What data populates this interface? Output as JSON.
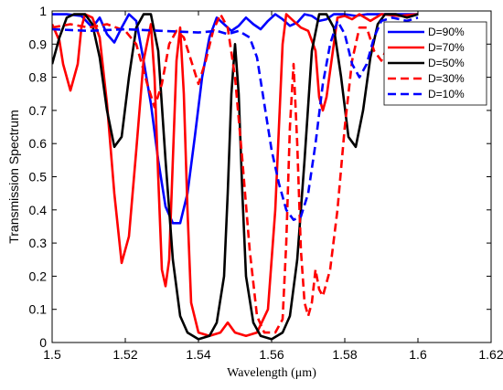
{
  "chart_data": {
    "type": "line",
    "title": "",
    "xlabel": "Wavelength (μm)",
    "ylabel": "Transmission Spectrum",
    "xlim": [
      1.5,
      1.62
    ],
    "ylim": [
      0,
      1
    ],
    "xticks": [
      1.5,
      1.52,
      1.54,
      1.56,
      1.58,
      1.6,
      1.62
    ],
    "xtick_labels": [
      "1.5",
      "1.52",
      "1.54",
      "1.56",
      "1.58",
      "1.6",
      "1.62"
    ],
    "yticks": [
      0,
      0.1,
      0.2,
      0.3,
      0.4,
      0.5,
      0.6,
      0.7,
      0.8,
      0.9,
      1
    ],
    "ytick_labels": [
      "0",
      "0.1",
      "0.2",
      "0.3",
      "0.4",
      "0.5",
      "0.6",
      "0.7",
      "0.8",
      "0.9",
      "1"
    ],
    "grid": false,
    "legend_position": "top-right",
    "series": [
      {
        "name": "D=90%",
        "color": "#0000ff",
        "dash": "solid",
        "points": [
          [
            1.5,
            0.99
          ],
          [
            1.504,
            0.99
          ],
          [
            1.508,
            0.985
          ],
          [
            1.511,
            0.95
          ],
          [
            1.513,
            0.98
          ],
          [
            1.515,
            0.93
          ],
          [
            1.517,
            0.905
          ],
          [
            1.519,
            0.95
          ],
          [
            1.521,
            0.99
          ],
          [
            1.523,
            0.97
          ],
          [
            1.525,
            0.85
          ],
          [
            1.527,
            0.72
          ],
          [
            1.529,
            0.55
          ],
          [
            1.531,
            0.41
          ],
          [
            1.533,
            0.36
          ],
          [
            1.535,
            0.36
          ],
          [
            1.537,
            0.45
          ],
          [
            1.539,
            0.62
          ],
          [
            1.541,
            0.8
          ],
          [
            1.543,
            0.92
          ],
          [
            1.545,
            0.98
          ],
          [
            1.547,
            0.96
          ],
          [
            1.549,
            0.94
          ],
          [
            1.551,
            0.955
          ],
          [
            1.553,
            0.98
          ],
          [
            1.555,
            0.96
          ],
          [
            1.557,
            0.945
          ],
          [
            1.559,
            0.97
          ],
          [
            1.561,
            0.99
          ],
          [
            1.563,
            0.975
          ],
          [
            1.565,
            0.955
          ],
          [
            1.567,
            0.965
          ],
          [
            1.569,
            0.99
          ],
          [
            1.571,
            0.985
          ],
          [
            1.573,
            0.97
          ],
          [
            1.575,
            0.975
          ],
          [
            1.577,
            0.99
          ],
          [
            1.58,
            0.99
          ],
          [
            1.583,
            0.985
          ],
          [
            1.586,
            0.99
          ],
          [
            1.59,
            0.99
          ],
          [
            1.595,
            0.99
          ],
          [
            1.6,
            0.99
          ]
        ]
      },
      {
        "name": "D=70%",
        "color": "#ff0000",
        "dash": "solid",
        "points": [
          [
            1.5,
            0.96
          ],
          [
            1.502,
            0.91
          ],
          [
            1.503,
            0.84
          ],
          [
            1.505,
            0.76
          ],
          [
            1.507,
            0.84
          ],
          [
            1.508,
            0.95
          ],
          [
            1.509,
            0.99
          ],
          [
            1.511,
            0.98
          ],
          [
            1.513,
            0.92
          ],
          [
            1.515,
            0.72
          ],
          [
            1.517,
            0.45
          ],
          [
            1.519,
            0.24
          ],
          [
            1.521,
            0.32
          ],
          [
            1.523,
            0.58
          ],
          [
            1.525,
            0.85
          ],
          [
            1.527,
            0.96
          ],
          [
            1.528,
            0.8
          ],
          [
            1.529,
            0.5
          ],
          [
            1.53,
            0.22
          ],
          [
            1.531,
            0.17
          ],
          [
            1.532,
            0.25
          ],
          [
            1.533,
            0.55
          ],
          [
            1.534,
            0.85
          ],
          [
            1.535,
            0.95
          ],
          [
            1.536,
            0.75
          ],
          [
            1.537,
            0.4
          ],
          [
            1.538,
            0.12
          ],
          [
            1.54,
            0.03
          ],
          [
            1.543,
            0.02
          ],
          [
            1.546,
            0.03
          ],
          [
            1.548,
            0.06
          ],
          [
            1.55,
            0.03
          ],
          [
            1.553,
            0.02
          ],
          [
            1.556,
            0.03
          ],
          [
            1.559,
            0.1
          ],
          [
            1.561,
            0.4
          ],
          [
            1.563,
            0.9
          ],
          [
            1.564,
            0.99
          ],
          [
            1.566,
            0.97
          ],
          [
            1.568,
            0.95
          ],
          [
            1.57,
            0.94
          ],
          [
            1.572,
            0.88
          ],
          [
            1.573,
            0.74
          ],
          [
            1.574,
            0.7
          ],
          [
            1.575,
            0.74
          ],
          [
            1.577,
            0.9
          ],
          [
            1.578,
            0.98
          ],
          [
            1.58,
            0.985
          ],
          [
            1.582,
            0.975
          ],
          [
            1.584,
            0.99
          ],
          [
            1.587,
            0.97
          ],
          [
            1.59,
            0.99
          ],
          [
            1.595,
            0.985
          ],
          [
            1.6,
            0.99
          ]
        ]
      },
      {
        "name": "D=50%",
        "color": "#000000",
        "dash": "solid",
        "points": [
          [
            1.5,
            0.84
          ],
          [
            1.502,
            0.92
          ],
          [
            1.504,
            0.98
          ],
          [
            1.506,
            0.99
          ],
          [
            1.509,
            0.99
          ],
          [
            1.511,
            0.96
          ],
          [
            1.513,
            0.86
          ],
          [
            1.515,
            0.7
          ],
          [
            1.517,
            0.59
          ],
          [
            1.519,
            0.62
          ],
          [
            1.521,
            0.8
          ],
          [
            1.523,
            0.95
          ],
          [
            1.525,
            0.99
          ],
          [
            1.527,
            0.99
          ],
          [
            1.529,
            0.88
          ],
          [
            1.531,
            0.55
          ],
          [
            1.533,
            0.25
          ],
          [
            1.535,
            0.08
          ],
          [
            1.537,
            0.03
          ],
          [
            1.54,
            0.01
          ],
          [
            1.543,
            0.02
          ],
          [
            1.545,
            0.06
          ],
          [
            1.547,
            0.2
          ],
          [
            1.548,
            0.45
          ],
          [
            1.549,
            0.75
          ],
          [
            1.55,
            0.9
          ],
          [
            1.551,
            0.75
          ],
          [
            1.552,
            0.45
          ],
          [
            1.553,
            0.2
          ],
          [
            1.555,
            0.06
          ],
          [
            1.557,
            0.02
          ],
          [
            1.56,
            0.01
          ],
          [
            1.563,
            0.03
          ],
          [
            1.565,
            0.08
          ],
          [
            1.567,
            0.25
          ],
          [
            1.569,
            0.55
          ],
          [
            1.571,
            0.88
          ],
          [
            1.573,
            0.99
          ],
          [
            1.575,
            0.99
          ],
          [
            1.577,
            0.95
          ],
          [
            1.579,
            0.8
          ],
          [
            1.581,
            0.62
          ],
          [
            1.583,
            0.59
          ],
          [
            1.585,
            0.7
          ],
          [
            1.587,
            0.86
          ],
          [
            1.589,
            0.96
          ],
          [
            1.591,
            0.99
          ],
          [
            1.594,
            0.99
          ],
          [
            1.597,
            0.98
          ],
          [
            1.6,
            0.99
          ]
        ]
      },
      {
        "name": "D=30%",
        "color": "#ff0000",
        "dash": "dashed",
        "points": [
          [
            1.5,
            0.95
          ],
          [
            1.505,
            0.96
          ],
          [
            1.51,
            0.95
          ],
          [
            1.515,
            0.96
          ],
          [
            1.52,
            0.94
          ],
          [
            1.523,
            0.9
          ],
          [
            1.526,
            0.78
          ],
          [
            1.528,
            0.71
          ],
          [
            1.53,
            0.78
          ],
          [
            1.532,
            0.9
          ],
          [
            1.534,
            0.94
          ],
          [
            1.536,
            0.92
          ],
          [
            1.538,
            0.85
          ],
          [
            1.54,
            0.78
          ],
          [
            1.542,
            0.85
          ],
          [
            1.544,
            0.94
          ],
          [
            1.546,
            0.99
          ],
          [
            1.548,
            0.95
          ],
          [
            1.55,
            0.8
          ],
          [
            1.552,
            0.55
          ],
          [
            1.554,
            0.28
          ],
          [
            1.556,
            0.08
          ],
          [
            1.558,
            0.03
          ],
          [
            1.561,
            0.03
          ],
          [
            1.563,
            0.07
          ],
          [
            1.564,
            0.3
          ],
          [
            1.565,
            0.65
          ],
          [
            1.566,
            0.84
          ],
          [
            1.567,
            0.6
          ],
          [
            1.568,
            0.28
          ],
          [
            1.569,
            0.12
          ],
          [
            1.57,
            0.08
          ],
          [
            1.571,
            0.12
          ],
          [
            1.572,
            0.22
          ],
          [
            1.573,
            0.16
          ],
          [
            1.574,
            0.14
          ],
          [
            1.576,
            0.22
          ],
          [
            1.578,
            0.4
          ],
          [
            1.58,
            0.65
          ],
          [
            1.582,
            0.85
          ],
          [
            1.584,
            0.95
          ],
          [
            1.586,
            0.95
          ],
          [
            1.588,
            0.88
          ],
          [
            1.59,
            0.85
          ],
          [
            1.592,
            0.9
          ],
          [
            1.595,
            0.95
          ],
          [
            1.6,
            0.96
          ]
        ]
      },
      {
        "name": "D=10%",
        "color": "#0000ff",
        "dash": "dashed",
        "points": [
          [
            1.5,
            0.945
          ],
          [
            1.51,
            0.94
          ],
          [
            1.52,
            0.945
          ],
          [
            1.53,
            0.94
          ],
          [
            1.54,
            0.935
          ],
          [
            1.545,
            0.94
          ],
          [
            1.548,
            0.93
          ],
          [
            1.551,
            0.94
          ],
          [
            1.554,
            0.92
          ],
          [
            1.556,
            0.86
          ],
          [
            1.558,
            0.72
          ],
          [
            1.56,
            0.58
          ],
          [
            1.562,
            0.48
          ],
          [
            1.564,
            0.4
          ],
          [
            1.566,
            0.37
          ],
          [
            1.568,
            0.38
          ],
          [
            1.57,
            0.45
          ],
          [
            1.572,
            0.6
          ],
          [
            1.574,
            0.78
          ],
          [
            1.576,
            0.9
          ],
          [
            1.578,
            0.97
          ],
          [
            1.58,
            0.93
          ],
          [
            1.582,
            0.84
          ],
          [
            1.584,
            0.8
          ],
          [
            1.586,
            0.84
          ],
          [
            1.588,
            0.92
          ],
          [
            1.59,
            0.97
          ],
          [
            1.593,
            0.98
          ],
          [
            1.597,
            0.97
          ],
          [
            1.6,
            0.98
          ]
        ]
      }
    ]
  }
}
